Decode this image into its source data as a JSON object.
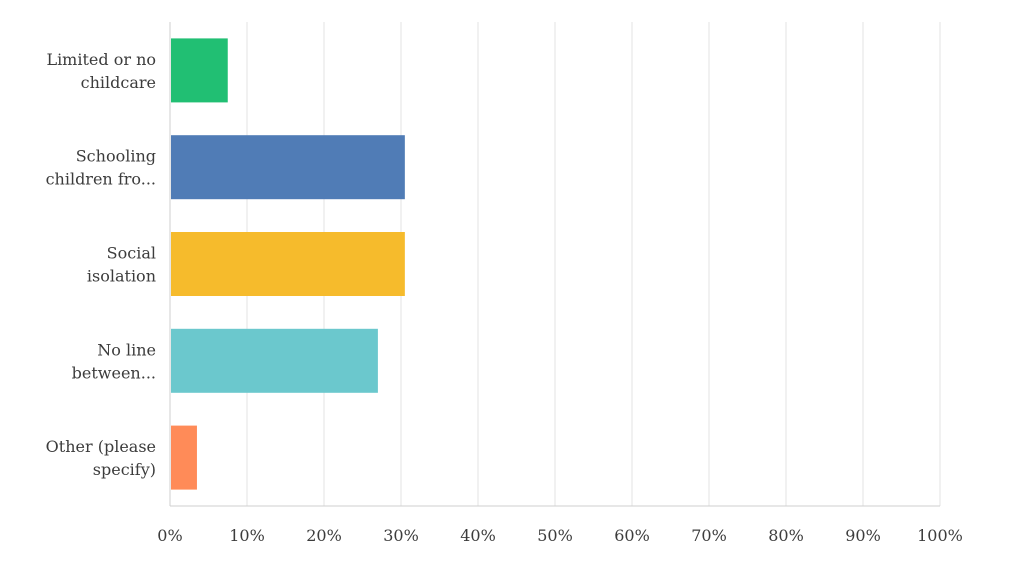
{
  "chart_data": {
    "type": "bar",
    "orientation": "horizontal",
    "categories": [
      [
        "Limited or no",
        "childcare"
      ],
      [
        "Schooling",
        "children fro..."
      ],
      [
        "Social",
        "isolation"
      ],
      [
        "No line",
        "between..."
      ],
      [
        "Other (please",
        "specify)"
      ]
    ],
    "values": [
      7.5,
      30.5,
      30.5,
      27,
      3.5
    ],
    "colors": [
      "#21bf73",
      "#507cb6",
      "#f6bb2c",
      "#6bc8cd",
      "#ff8b58"
    ],
    "xlim": [
      0,
      100
    ],
    "x_ticks": [
      "0%",
      "10%",
      "20%",
      "30%",
      "40%",
      "50%",
      "60%",
      "70%",
      "80%",
      "90%",
      "100%"
    ],
    "grid": true,
    "title": "",
    "xlabel": "",
    "ylabel": ""
  }
}
